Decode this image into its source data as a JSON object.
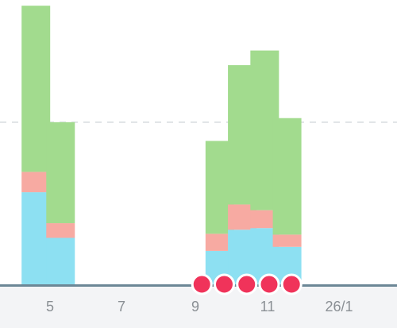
{
  "colors": {
    "segment_bottom": "#8de0f2",
    "segment_middle": "#f7aaa2",
    "segment_top": "#a2db8e",
    "marker": "#f0335a",
    "baseline": "#6c8796",
    "gridline": "#dfe3e6",
    "axis_band": "#f3f4f6",
    "tick_label": "#8a8f94"
  },
  "chart_data": {
    "type": "bar",
    "stacked": true,
    "x_tick_labels": [
      "5",
      "7",
      "9",
      "11",
      "26/1"
    ],
    "grid": true,
    "legend": "none",
    "markers": {
      "shape": "circle",
      "positions": [
        8.5,
        9,
        9.5,
        10,
        10.5
      ]
    },
    "bars": [
      {
        "x": 4.8,
        "segments": [
          1.14,
          0.25,
          2.04
        ]
      },
      {
        "x": 5.35,
        "segments": [
          0.58,
          0.18,
          1.24
        ]
      },
      {
        "x": 8.9,
        "segments": [
          0.42,
          0.21,
          1.14
        ]
      },
      {
        "x": 9.4,
        "segments": [
          0.68,
          0.31,
          1.71
        ]
      },
      {
        "x": 9.9,
        "segments": [
          0.7,
          0.22,
          1.96
        ]
      },
      {
        "x": 10.4,
        "segments": [
          0.47,
          0.15,
          1.43
        ]
      }
    ],
    "ylim": [
      0,
      3.5
    ]
  }
}
